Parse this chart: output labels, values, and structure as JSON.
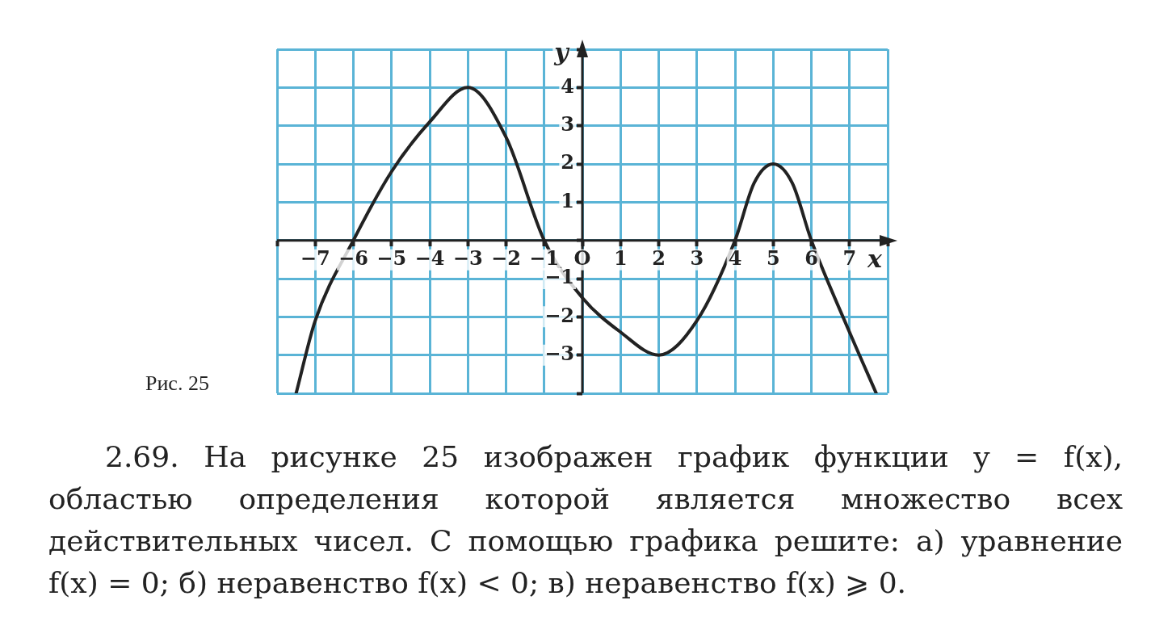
{
  "chart_data": {
    "type": "line",
    "xlabel": "x",
    "ylabel": "y",
    "x": [
      -7.5,
      -7,
      -6,
      -5,
      -4,
      -3,
      -2,
      -1,
      0,
      1,
      2,
      3,
      4,
      4.5,
      5,
      5.5,
      6,
      7,
      7.7
    ],
    "series": [
      {
        "color": "#222222",
        "values": [
          -4,
          -2.1,
          0,
          1.8,
          3.1,
          4,
          2.7,
          0,
          -1.5,
          -2.4,
          -3,
          -2.1,
          0,
          1.5,
          2,
          1.5,
          0,
          -2.4,
          -4
        ]
      }
    ],
    "xlim": [
      -8,
      8
    ],
    "ylim": [
      -4,
      5
    ],
    "xticks": [
      {
        "value": -8,
        "label": null
      },
      -7,
      -6,
      -5,
      -4,
      -3,
      -2,
      -1,
      {
        "value": 0,
        "label": "O"
      },
      1,
      2,
      3,
      4,
      5,
      6,
      7,
      {
        "value": 8,
        "label": null
      }
    ],
    "yticks": [
      {
        "value": -4,
        "label": null
      },
      -3,
      -2,
      -1,
      {
        "value": 0,
        "label": null
      },
      1,
      2,
      3,
      4,
      {
        "value": 5,
        "label": null
      }
    ],
    "grid": true,
    "legend": false,
    "marker": "none",
    "line_style": "solid",
    "annotations": [
      "Рис. 25",
      "2.69. На рисунке 25 изображен график функции y = f(x), областью определения которой является множество всех действительных чисел. С помощью графика решите: а) уравнение f(x) = 0; б) неравенство f(x) < 0; в) неравенство f(x) ⩾ 0."
    ]
  }
}
